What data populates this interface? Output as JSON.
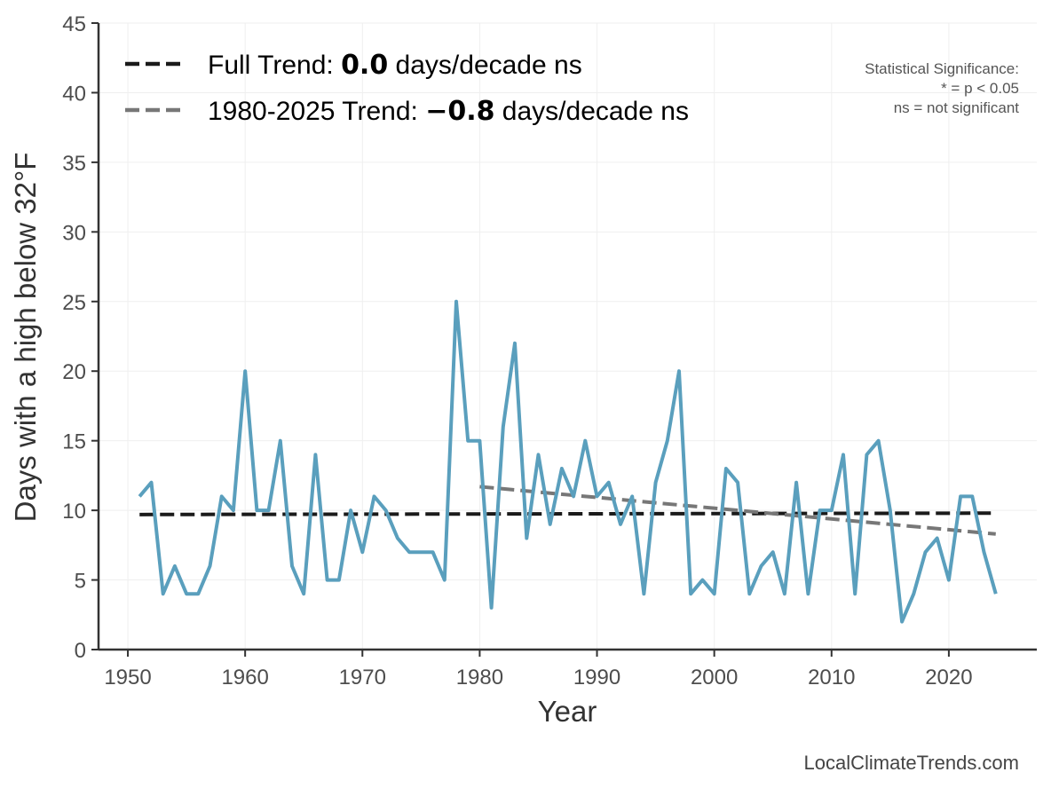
{
  "chart_data": {
    "type": "line",
    "title": "",
    "xlabel": "Year",
    "ylabel": "Days with a high below 32°F",
    "xlim": [
      1947.5,
      2027.5
    ],
    "ylim": [
      0,
      45
    ],
    "xticks": [
      1950,
      1960,
      1970,
      1980,
      1990,
      2000,
      2010,
      2020
    ],
    "yticks": [
      0,
      5,
      10,
      15,
      20,
      25,
      30,
      35,
      40,
      45
    ],
    "grid": true,
    "series": [
      {
        "name": "Days with a high below 32°F",
        "color": "#5a9fbd",
        "x": [
          1951,
          1952,
          1953,
          1954,
          1955,
          1956,
          1957,
          1958,
          1959,
          1960,
          1961,
          1962,
          1963,
          1964,
          1965,
          1966,
          1967,
          1968,
          1969,
          1970,
          1971,
          1972,
          1973,
          1974,
          1975,
          1976,
          1977,
          1978,
          1979,
          1980,
          1981,
          1982,
          1983,
          1984,
          1985,
          1986,
          1987,
          1988,
          1989,
          1990,
          1991,
          1992,
          1993,
          1994,
          1995,
          1996,
          1997,
          1998,
          1999,
          2000,
          2001,
          2002,
          2003,
          2004,
          2005,
          2006,
          2007,
          2008,
          2009,
          2010,
          2011,
          2012,
          2013,
          2014,
          2015,
          2016,
          2017,
          2018,
          2019,
          2020,
          2021,
          2022,
          2023,
          2024
        ],
        "values": [
          11,
          12,
          4,
          6,
          4,
          4,
          6,
          11,
          10,
          20,
          10,
          10,
          15,
          6,
          4,
          14,
          5,
          5,
          10,
          7,
          11,
          10,
          8,
          7,
          7,
          7,
          5,
          25,
          15,
          15,
          3,
          16,
          22,
          8,
          14,
          9,
          13,
          11,
          15,
          11,
          12,
          9,
          11,
          4,
          12,
          15,
          20,
          4,
          5,
          4,
          13,
          12,
          4,
          6,
          7,
          4,
          12,
          4,
          10,
          10,
          14,
          4,
          14,
          15,
          10,
          2,
          4,
          7,
          8,
          5,
          11,
          11,
          7,
          4
        ]
      }
    ],
    "trends": [
      {
        "name": "Full Trend",
        "color": "#1a1a1a",
        "x": [
          1951,
          2024
        ],
        "values": [
          9.7,
          9.8
        ]
      },
      {
        "name": "1980-2025 Trend",
        "color": "#777777",
        "x": [
          1980,
          2024
        ],
        "values": [
          11.7,
          8.3
        ]
      }
    ],
    "legend": {
      "position": "top-left",
      "entries": [
        {
          "prefix": "Full Trend: ",
          "value": "0.0",
          "suffix": " days/decade ns"
        },
        {
          "prefix": "1980-2025 Trend: ",
          "value": "−0.8",
          "suffix": " days/decade ns"
        }
      ]
    },
    "significance_note": {
      "position": "top-right",
      "lines": [
        "Statistical Significance:",
        "* = p < 0.05",
        "ns = not significant"
      ]
    },
    "source": "LocalClimateTrends.com"
  }
}
